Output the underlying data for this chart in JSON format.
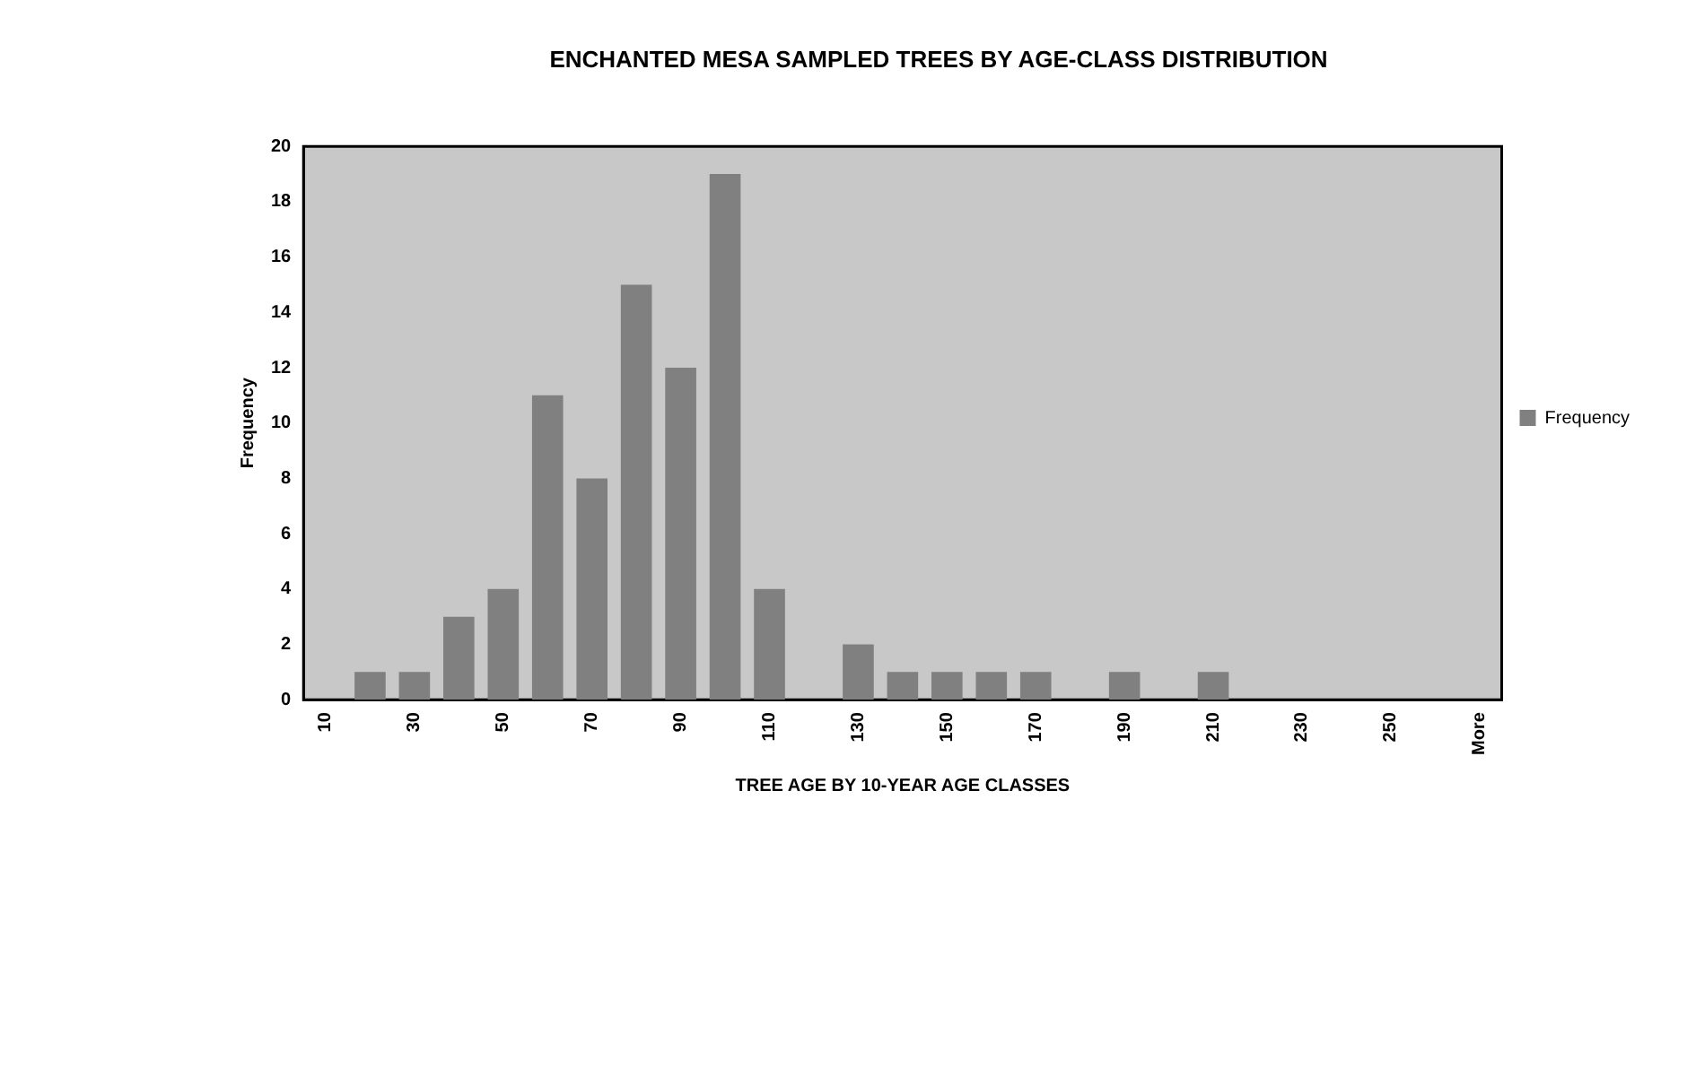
{
  "chart_data": {
    "type": "bar",
    "title": "ENCHANTED MESA SAMPLED TREES BY AGE-CLASS DISTRIBUTION",
    "xlabel": "TREE AGE BY 10-YEAR AGE CLASSES",
    "ylabel": "Frequency",
    "categories": [
      "10",
      null,
      "30",
      null,
      "50",
      null,
      "70",
      null,
      "90",
      null,
      "110",
      null,
      "130",
      null,
      "150",
      null,
      "170",
      null,
      "190",
      null,
      "210",
      null,
      "230",
      null,
      "250",
      null,
      "More"
    ],
    "series": [
      {
        "name": "Frequency",
        "color": "#808080",
        "values": [
          0,
          1,
          1,
          3,
          4,
          11,
          8,
          15,
          12,
          19,
          4,
          0,
          2,
          1,
          1,
          1,
          1,
          0,
          1,
          0,
          1,
          0,
          0,
          0,
          0,
          0,
          0
        ]
      }
    ],
    "ylim": [
      0,
      20
    ],
    "yticks": [
      0,
      2,
      4,
      6,
      8,
      10,
      12,
      14,
      16,
      18,
      20
    ],
    "grid": false,
    "legend": "right"
  }
}
